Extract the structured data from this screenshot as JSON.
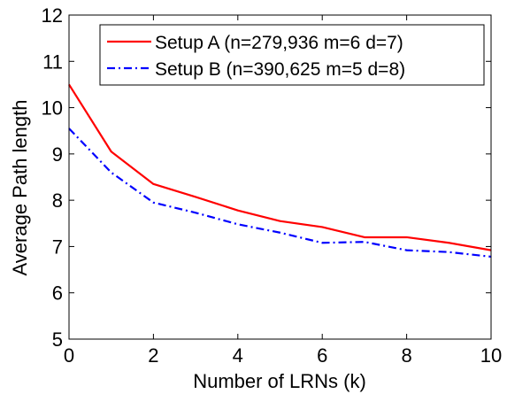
{
  "chart_data": {
    "type": "line",
    "title": "",
    "xlabel": "Number of LRNs (k)",
    "ylabel": "Average Path length",
    "xlim": [
      0,
      10
    ],
    "ylim": [
      5,
      12
    ],
    "x_ticks": [
      0,
      2,
      4,
      6,
      8,
      10
    ],
    "y_ticks": [
      5,
      6,
      7,
      8,
      9,
      10,
      11,
      12
    ],
    "grid": false,
    "legend_position": "top-right",
    "x": [
      0,
      1,
      2,
      3,
      4,
      5,
      6,
      7,
      8,
      9,
      10
    ],
    "series": [
      {
        "name": "Setup A (n=279,936 m=6 d=7)",
        "style": "solid",
        "color": "#ff0000",
        "values": [
          10.5,
          9.05,
          8.35,
          8.07,
          7.78,
          7.55,
          7.42,
          7.2,
          7.2,
          7.08,
          6.92
        ]
      },
      {
        "name": "Setup B (n=390,625 m=5 d=8)",
        "style": "dash-dot",
        "color": "#0000ff",
        "values": [
          9.55,
          8.6,
          7.95,
          7.73,
          7.48,
          7.3,
          7.08,
          7.1,
          6.92,
          6.88,
          6.78
        ]
      }
    ]
  }
}
